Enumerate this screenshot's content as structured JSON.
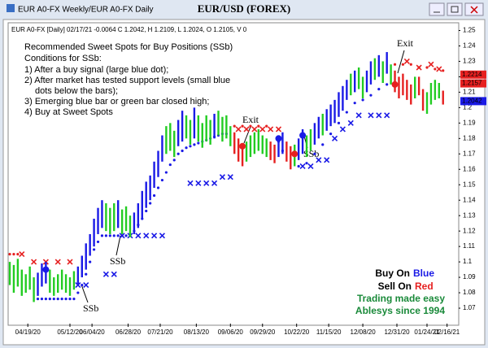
{
  "window_title": "EUR A0-FX Weekly/EUR A0-FX Daily",
  "chart_data": {
    "type": "ohlc",
    "title": "EUR/USD (FOREX)",
    "info": "EUR A0-FX [Daily] 02/17/21 -0.0064 C 1.2042, H 1.2109, L 1.2024, O 1.2105, V 0",
    "notes": [
      "Recommended Sweet Spots for Buy Positions (SSb)",
      "Conditions for SSb:",
      "1) After a buy signal (large blue dot);",
      "2) After market has tested support levels (small blue",
      "dots below the bars);",
      "3) Emerging blue bar or green bar closed high;",
      "4) Buy at Sweet Spots"
    ],
    "annotations": [
      "Exit",
      "Exit",
      "SSb",
      "SSb",
      "SSb"
    ],
    "legend": {
      "buy": "Buy On",
      "buy_color": "Blue",
      "sell": "Sell On",
      "sell_color": "Red",
      "line1": "Trading made easy",
      "line2": "Ablesys since 1994"
    },
    "palette": {
      "b": "#1a1ae6",
      "g": "#22cc22",
      "r": "#e62020"
    },
    "xlim": [
      0,
      223
    ],
    "ylim": [
      1.06,
      1.255
    ],
    "yticks": [
      1.07,
      1.08,
      1.09,
      1.1,
      1.11,
      1.12,
      1.13,
      1.14,
      1.15,
      1.16,
      1.17,
      1.18,
      1.19,
      1.2,
      1.21,
      1.22,
      1.23,
      1.24,
      1.25
    ],
    "xticks": [
      {
        "value": 9,
        "label": "04/19/20"
      },
      {
        "value": 30,
        "label": "05/12/20"
      },
      {
        "value": 41,
        "label": "06/04/20"
      },
      {
        "value": 59,
        "label": "06/28/20"
      },
      {
        "value": 75,
        "label": "07/21/20"
      },
      {
        "value": 93,
        "label": "08/13/20"
      },
      {
        "value": 110,
        "label": "09/06/20"
      },
      {
        "value": 126,
        "label": "09/29/20"
      },
      {
        "value": 143,
        "label": "10/22/20"
      },
      {
        "value": 159,
        "label": "11/15/20"
      },
      {
        "value": 176,
        "label": "12/08/20"
      },
      {
        "value": 193,
        "label": "12/31/20"
      },
      {
        "value": 208,
        "label": "01/24/21"
      },
      {
        "value": 218,
        "label": "02/16/21"
      }
    ],
    "bars": [
      [
        0,
        1.085,
        1.1,
        "g"
      ],
      [
        2,
        1.08,
        1.098,
        "g"
      ],
      [
        4,
        1.084,
        1.102,
        "g"
      ],
      [
        6,
        1.078,
        1.095,
        "g"
      ],
      [
        8,
        1.08,
        1.092,
        "g"
      ],
      [
        10,
        1.082,
        1.097,
        "g"
      ],
      [
        12,
        1.074,
        1.09,
        "g"
      ],
      [
        14,
        1.078,
        1.093,
        "b"
      ],
      [
        16,
        1.084,
        1.099,
        "b"
      ],
      [
        18,
        1.086,
        1.1,
        "b"
      ],
      [
        20,
        1.08,
        1.095,
        "g"
      ],
      [
        22,
        1.078,
        1.09,
        "g"
      ],
      [
        24,
        1.08,
        1.092,
        "g"
      ],
      [
        26,
        1.082,
        1.095,
        "g"
      ],
      [
        28,
        1.08,
        1.092,
        "g"
      ],
      [
        30,
        1.078,
        1.09,
        "g"
      ],
      [
        32,
        1.082,
        1.094,
        "g"
      ],
      [
        34,
        1.085,
        1.097,
        "b"
      ],
      [
        36,
        1.09,
        1.104,
        "b"
      ],
      [
        38,
        1.095,
        1.112,
        "b"
      ],
      [
        40,
        1.104,
        1.118,
        "b"
      ],
      [
        42,
        1.11,
        1.128,
        "b"
      ],
      [
        44,
        1.118,
        1.135,
        "b"
      ],
      [
        46,
        1.122,
        1.14,
        "b"
      ],
      [
        48,
        1.12,
        1.138,
        "g"
      ],
      [
        50,
        1.118,
        1.135,
        "g"
      ],
      [
        52,
        1.12,
        1.138,
        "g"
      ],
      [
        54,
        1.122,
        1.14,
        "b"
      ],
      [
        56,
        1.118,
        1.134,
        "g"
      ],
      [
        58,
        1.12,
        1.136,
        "g"
      ],
      [
        60,
        1.116,
        1.13,
        "g"
      ],
      [
        62,
        1.118,
        1.132,
        "b"
      ],
      [
        64,
        1.122,
        1.138,
        "b"
      ],
      [
        66,
        1.128,
        1.146,
        "b"
      ],
      [
        68,
        1.135,
        1.152,
        "b"
      ],
      [
        70,
        1.14,
        1.156,
        "b"
      ],
      [
        72,
        1.148,
        1.165,
        "b"
      ],
      [
        74,
        1.155,
        1.172,
        "b"
      ],
      [
        76,
        1.165,
        1.182,
        "b"
      ],
      [
        78,
        1.17,
        1.188,
        "g"
      ],
      [
        80,
        1.172,
        1.19,
        "g"
      ],
      [
        82,
        1.168,
        1.185,
        "g"
      ],
      [
        84,
        1.175,
        1.192,
        "b"
      ],
      [
        86,
        1.178,
        1.198,
        "b"
      ],
      [
        88,
        1.18,
        1.195,
        "g"
      ],
      [
        90,
        1.176,
        1.192,
        "g"
      ],
      [
        92,
        1.18,
        1.2,
        "b"
      ],
      [
        94,
        1.178,
        1.195,
        "g"
      ],
      [
        96,
        1.174,
        1.19,
        "g"
      ],
      [
        98,
        1.178,
        1.195,
        "g"
      ],
      [
        100,
        1.176,
        1.192,
        "g"
      ],
      [
        102,
        1.18,
        1.196,
        "b"
      ],
      [
        104,
        1.182,
        1.198,
        "g"
      ],
      [
        106,
        1.178,
        1.194,
        "g"
      ],
      [
        108,
        1.18,
        1.195,
        "g"
      ],
      [
        110,
        1.175,
        1.188,
        "g"
      ],
      [
        112,
        1.17,
        1.184,
        "r"
      ],
      [
        114,
        1.165,
        1.18,
        "r"
      ],
      [
        116,
        1.162,
        1.176,
        "r"
      ],
      [
        118,
        1.165,
        1.178,
        "g"
      ],
      [
        120,
        1.168,
        1.182,
        "g"
      ],
      [
        122,
        1.17,
        1.184,
        "g"
      ],
      [
        124,
        1.172,
        1.186,
        "g"
      ],
      [
        126,
        1.17,
        1.182,
        "g"
      ],
      [
        128,
        1.168,
        1.18,
        "g"
      ],
      [
        130,
        1.166,
        1.178,
        "r"
      ],
      [
        132,
        1.164,
        1.176,
        "r"
      ],
      [
        134,
        1.168,
        1.18,
        "b"
      ],
      [
        136,
        1.17,
        1.184,
        "b"
      ],
      [
        138,
        1.165,
        1.178,
        "r"
      ],
      [
        140,
        1.16,
        1.175,
        "r"
      ],
      [
        142,
        1.162,
        1.176,
        "g"
      ],
      [
        144,
        1.166,
        1.18,
        "b"
      ],
      [
        146,
        1.17,
        1.186,
        "b"
      ],
      [
        148,
        1.168,
        1.182,
        "g"
      ],
      [
        150,
        1.172,
        1.186,
        "g"
      ],
      [
        152,
        1.176,
        1.19,
        "b"
      ],
      [
        154,
        1.18,
        1.194,
        "b"
      ],
      [
        156,
        1.182,
        1.196,
        "g"
      ],
      [
        158,
        1.185,
        1.199,
        "b"
      ],
      [
        160,
        1.188,
        1.202,
        "b"
      ],
      [
        162,
        1.19,
        1.205,
        "b"
      ],
      [
        164,
        1.194,
        1.21,
        "b"
      ],
      [
        166,
        1.198,
        1.214,
        "b"
      ],
      [
        168,
        1.205,
        1.218,
        "b"
      ],
      [
        170,
        1.208,
        1.222,
        "g"
      ],
      [
        172,
        1.21,
        1.224,
        "b"
      ],
      [
        174,
        1.212,
        1.226,
        "g"
      ],
      [
        176,
        1.206,
        1.22,
        "g"
      ],
      [
        178,
        1.21,
        1.224,
        "b"
      ],
      [
        180,
        1.215,
        1.23,
        "b"
      ],
      [
        182,
        1.218,
        1.232,
        "g"
      ],
      [
        184,
        1.22,
        1.234,
        "b"
      ],
      [
        186,
        1.216,
        1.23,
        "g"
      ],
      [
        188,
        1.222,
        1.236,
        "b"
      ],
      [
        190,
        1.215,
        1.228,
        "g"
      ],
      [
        192,
        1.21,
        1.224,
        "r"
      ],
      [
        194,
        1.206,
        1.22,
        "r"
      ],
      [
        196,
        1.208,
        1.222,
        "r"
      ],
      [
        198,
        1.205,
        1.218,
        "r"
      ],
      [
        200,
        1.202,
        1.215,
        "r"
      ],
      [
        202,
        1.206,
        1.22,
        "g"
      ],
      [
        204,
        1.208,
        1.22,
        "r"
      ],
      [
        206,
        1.198,
        1.212,
        "r"
      ],
      [
        208,
        1.196,
        1.21,
        "g"
      ],
      [
        210,
        1.202,
        1.216,
        "g"
      ],
      [
        212,
        1.205,
        1.218,
        "g"
      ],
      [
        214,
        1.206,
        1.216,
        "g"
      ],
      [
        216,
        1.202,
        1.211,
        "r"
      ]
    ],
    "dots": [
      [
        0,
        1.105,
        "r"
      ],
      [
        2,
        1.105,
        "r"
      ],
      [
        4,
        1.105,
        "r"
      ],
      [
        14,
        1.076,
        "b"
      ],
      [
        16,
        1.076,
        "b"
      ],
      [
        18,
        1.076,
        "b"
      ],
      [
        20,
        1.076,
        "b"
      ],
      [
        22,
        1.076,
        "b"
      ],
      [
        24,
        1.076,
        "b"
      ],
      [
        26,
        1.076,
        "b"
      ],
      [
        28,
        1.076,
        "b"
      ],
      [
        30,
        1.076,
        "b"
      ],
      [
        32,
        1.076,
        "b"
      ],
      [
        34,
        1.08,
        "b"
      ],
      [
        36,
        1.085,
        "b"
      ],
      [
        38,
        1.092,
        "b"
      ],
      [
        40,
        1.1,
        "b"
      ],
      [
        42,
        1.108,
        "b"
      ],
      [
        44,
        1.113,
        "b"
      ],
      [
        46,
        1.117,
        "b"
      ],
      [
        48,
        1.117,
        "b"
      ],
      [
        50,
        1.117,
        "b"
      ],
      [
        52,
        1.117,
        "b"
      ],
      [
        54,
        1.117,
        "b"
      ],
      [
        56,
        1.117,
        "b"
      ],
      [
        58,
        1.117,
        "b"
      ],
      [
        60,
        1.117,
        "b"
      ],
      [
        62,
        1.12,
        "b"
      ],
      [
        64,
        1.124,
        "b"
      ],
      [
        66,
        1.128,
        "b"
      ],
      [
        68,
        1.133,
        "b"
      ],
      [
        70,
        1.138,
        "b"
      ],
      [
        72,
        1.143,
        "b"
      ],
      [
        74,
        1.148,
        "b"
      ],
      [
        76,
        1.153,
        "b"
      ],
      [
        78,
        1.158,
        "b"
      ],
      [
        80,
        1.163,
        "b"
      ],
      [
        82,
        1.166,
        "b"
      ],
      [
        84,
        1.17,
        "b"
      ],
      [
        86,
        1.172,
        "b"
      ],
      [
        88,
        1.174,
        "b"
      ],
      [
        90,
        1.175,
        "b"
      ],
      [
        92,
        1.176,
        "b"
      ],
      [
        94,
        1.177,
        "b"
      ],
      [
        96,
        1.178,
        "b"
      ],
      [
        98,
        1.179,
        "b"
      ],
      [
        100,
        1.18,
        "b"
      ],
      [
        102,
        1.181,
        "b"
      ],
      [
        104,
        1.182,
        "b"
      ],
      [
        106,
        1.183,
        "b"
      ],
      [
        108,
        1.183,
        "b"
      ],
      [
        112,
        1.188,
        "r"
      ],
      [
        116,
        1.188,
        "r"
      ],
      [
        120,
        1.188,
        "r"
      ],
      [
        124,
        1.188,
        "r"
      ],
      [
        128,
        1.188,
        "r"
      ],
      [
        134,
        1.178,
        "b"
      ],
      [
        136,
        1.172,
        "b"
      ],
      [
        144,
        1.162,
        "b"
      ],
      [
        148,
        1.164,
        "b"
      ],
      [
        152,
        1.17,
        "b"
      ],
      [
        156,
        1.176,
        "b"
      ],
      [
        160,
        1.183,
        "b"
      ],
      [
        164,
        1.19,
        "b"
      ],
      [
        168,
        1.197,
        "b"
      ],
      [
        172,
        1.203,
        "b"
      ],
      [
        176,
        1.205,
        "b"
      ],
      [
        180,
        1.208,
        "b"
      ],
      [
        184,
        1.212,
        "b"
      ],
      [
        188,
        1.215,
        "b"
      ],
      [
        192,
        1.228,
        "r"
      ],
      [
        196,
        1.228,
        "r"
      ],
      [
        200,
        1.228,
        "r"
      ],
      [
        204,
        1.226,
        "r"
      ],
      [
        208,
        1.226,
        "r"
      ],
      [
        212,
        1.225,
        "r"
      ],
      [
        216,
        1.224,
        "r"
      ]
    ],
    "crosses": [
      [
        6,
        1.105,
        "r"
      ],
      [
        12,
        1.1,
        "r"
      ],
      [
        18,
        1.1,
        "r"
      ],
      [
        24,
        1.1,
        "r"
      ],
      [
        30,
        1.1,
        "r"
      ],
      [
        34,
        1.085,
        "b"
      ],
      [
        38,
        1.085,
        "b"
      ],
      [
        48,
        1.092,
        "b"
      ],
      [
        52,
        1.092,
        "b"
      ],
      [
        56,
        1.117,
        "b"
      ],
      [
        60,
        1.117,
        "b"
      ],
      [
        64,
        1.117,
        "b"
      ],
      [
        68,
        1.117,
        "b"
      ],
      [
        72,
        1.117,
        "b"
      ],
      [
        76,
        1.117,
        "b"
      ],
      [
        90,
        1.151,
        "b"
      ],
      [
        94,
        1.151,
        "b"
      ],
      [
        98,
        1.151,
        "b"
      ],
      [
        102,
        1.151,
        "b"
      ],
      [
        106,
        1.155,
        "b"
      ],
      [
        110,
        1.155,
        "b"
      ],
      [
        114,
        1.186,
        "r"
      ],
      [
        118,
        1.186,
        "r"
      ],
      [
        122,
        1.186,
        "r"
      ],
      [
        126,
        1.186,
        "r"
      ],
      [
        130,
        1.186,
        "r"
      ],
      [
        134,
        1.186,
        "r"
      ],
      [
        146,
        1.162,
        "b"
      ],
      [
        150,
        1.162,
        "b"
      ],
      [
        154,
        1.166,
        "b"
      ],
      [
        158,
        1.166,
        "b"
      ],
      [
        162,
        1.18,
        "b"
      ],
      [
        166,
        1.186,
        "b"
      ],
      [
        170,
        1.19,
        "b"
      ],
      [
        174,
        1.195,
        "b"
      ],
      [
        180,
        1.195,
        "b"
      ],
      [
        184,
        1.195,
        "b"
      ],
      [
        188,
        1.195,
        "b"
      ],
      [
        198,
        1.23,
        "r"
      ],
      [
        204,
        1.226,
        "r"
      ],
      [
        210,
        1.228,
        "r"
      ],
      [
        214,
        1.225,
        "r"
      ]
    ],
    "signals": [
      [
        18,
        1.095,
        "b"
      ],
      [
        116,
        1.175,
        "r"
      ],
      [
        134,
        1.18,
        "b"
      ],
      [
        142,
        1.17,
        "r"
      ],
      [
        146,
        1.182,
        "b"
      ],
      [
        192,
        1.215,
        "r"
      ]
    ],
    "price_labels": [
      {
        "value": 1.2214,
        "color": "#e62020"
      },
      {
        "value": 1.2157,
        "color": "#e62020"
      },
      {
        "value": 1.2042,
        "color": "#1a1ae6"
      }
    ]
  }
}
